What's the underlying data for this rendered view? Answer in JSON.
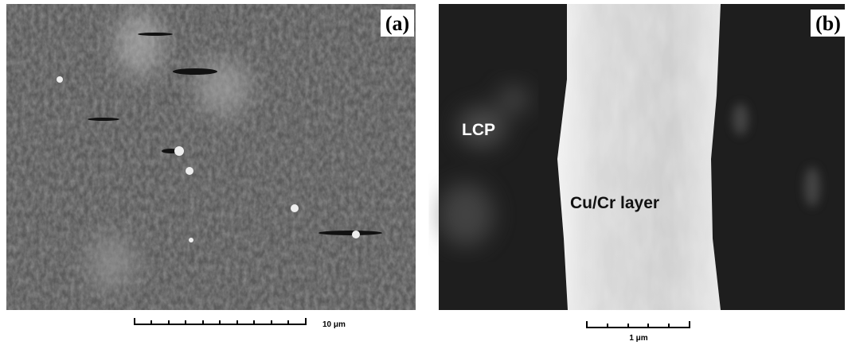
{
  "panels": [
    {
      "label": "(a)",
      "scale_bar": "10 μm"
    },
    {
      "label": "(b)",
      "annotations": [
        "LCP",
        "Cu/Cr layer"
      ],
      "scale_bar": "1 μm"
    }
  ]
}
